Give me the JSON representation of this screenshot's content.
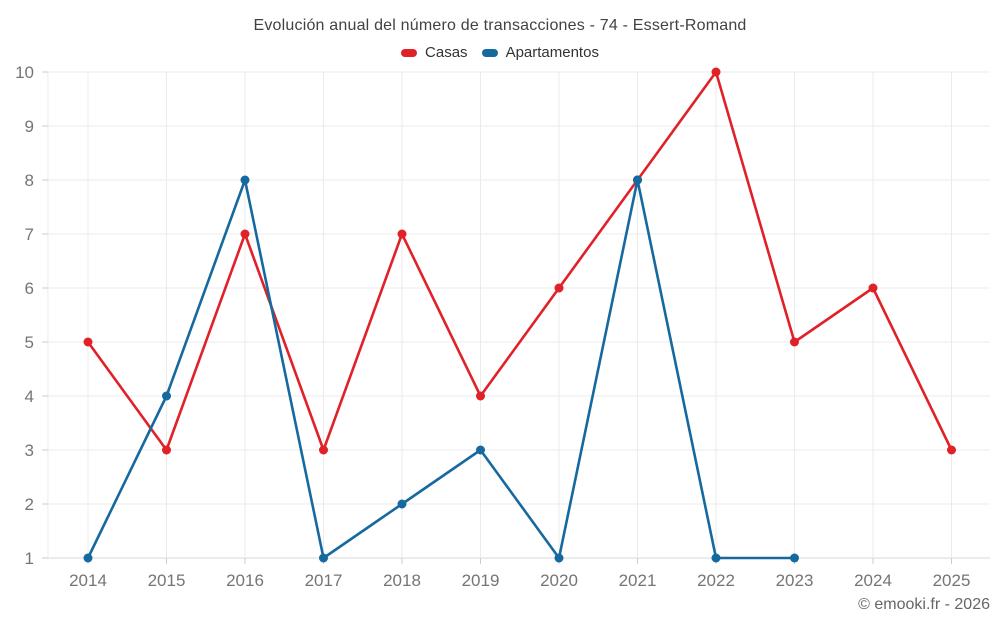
{
  "page": {
    "title": "Evolución anual del número de transacciones - 74 - Essert-Romand",
    "attribution": "© emooki.fr - 2026"
  },
  "legend": {
    "items": [
      {
        "label": "Casas",
        "color": "#e02128"
      },
      {
        "label": "Apartamentos",
        "color": "#16699e"
      }
    ]
  },
  "chart_data": {
    "type": "line",
    "title": "Evolución anual del número de transacciones - 74 - Essert-Romand",
    "categories": [
      "2014",
      "2015",
      "2016",
      "2017",
      "2018",
      "2019",
      "2020",
      "2021",
      "2022",
      "2023",
      "2024",
      "2025"
    ],
    "series": [
      {
        "name": "Casas",
        "color": "#e02128",
        "values": [
          5,
          3,
          7,
          3,
          7,
          4,
          6,
          8,
          10,
          5,
          6,
          3
        ]
      },
      {
        "name": "Apartamentos",
        "color": "#16699e",
        "values": [
          1,
          4,
          8,
          1,
          2,
          3,
          1,
          8,
          1,
          1,
          null,
          null
        ]
      }
    ],
    "xlabel": "",
    "ylabel": "",
    "ylim": [
      1,
      10
    ],
    "yticks": [
      1,
      2,
      3,
      4,
      5,
      6,
      7,
      8,
      9,
      10
    ],
    "grid": true,
    "legend_position": "top",
    "marker": "circle",
    "attribution": "© emooki.fr - 2026",
    "style": {
      "grid_color": "#ebebeb",
      "axis_line_color": "#d9d9d9",
      "tick_color": "#cccccc",
      "axis_label_color": "#757575",
      "line_width": 2.6,
      "marker_radius": 4.5
    }
  }
}
